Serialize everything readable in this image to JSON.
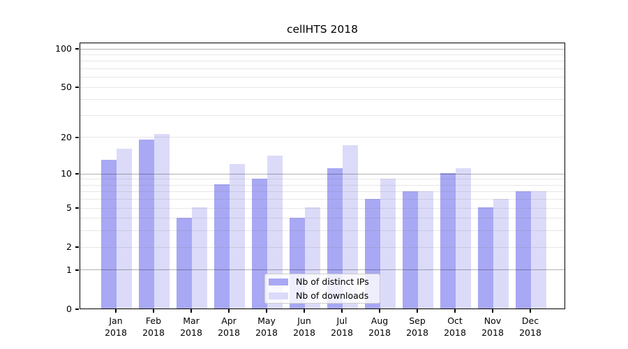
{
  "chart_data": {
    "type": "bar",
    "title": "cellHTS 2018",
    "categories": [
      "Jan 2018",
      "Feb 2018",
      "Mar 2018",
      "Apr 2018",
      "May 2018",
      "Jun 2018",
      "Jul 2018",
      "Aug 2018",
      "Sep 2018",
      "Oct 2018",
      "Nov 2018",
      "Dec 2018"
    ],
    "series": [
      {
        "name": "Nb of distinct IPs",
        "color": "#a8a8f4",
        "values": [
          13,
          19,
          4,
          8,
          9,
          4,
          11,
          6,
          7,
          10,
          5,
          7
        ]
      },
      {
        "name": "Nb of downloads",
        "color": "#dbdbf9",
        "values": [
          16,
          21,
          5,
          12,
          14,
          5,
          17,
          9,
          7,
          11,
          6,
          7
        ]
      }
    ],
    "xlabel": "",
    "ylabel": "",
    "y_axis": {
      "scale": "log(1+x)",
      "ticks": [
        0,
        1,
        2,
        5,
        10,
        20,
        50,
        100
      ],
      "minor_gridlines": [
        2,
        3,
        4,
        5,
        6,
        7,
        8,
        9,
        20,
        30,
        40,
        50,
        60,
        70,
        80,
        90
      ],
      "major_gridlines": [
        1,
        10,
        100
      ],
      "ylim": [
        0,
        113
      ]
    },
    "legend": {
      "position": "inside-bottom-center",
      "entries": [
        "Nb of distinct IPs",
        "Nb of downloads"
      ]
    },
    "grid": "horizontal",
    "colors": {
      "background": "#ffffff",
      "spine": "#000000",
      "major_grid": "#b6b6b6",
      "minor_grid": "#e9e9e9",
      "legend_border": "#cccccc"
    }
  }
}
